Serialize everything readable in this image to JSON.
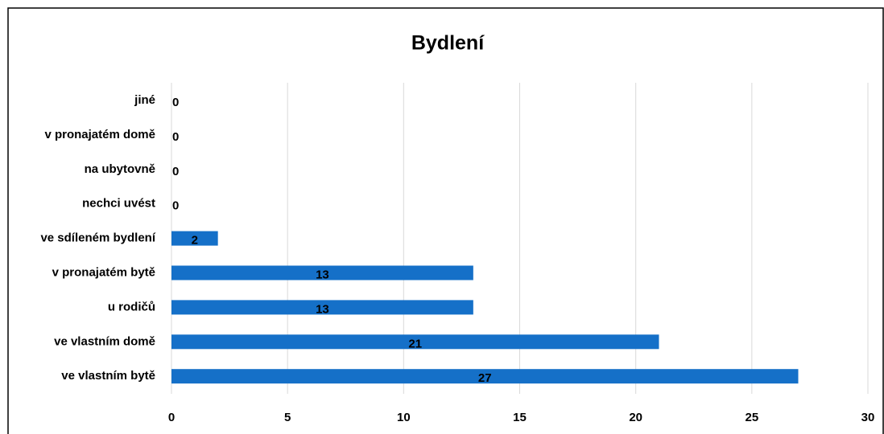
{
  "chart_data": {
    "type": "barh",
    "title": "Bydlení",
    "categories": [
      "jiné",
      "v pronajatém domě",
      "na ubytovně",
      "nechci uvést",
      "ve sdíleném bydlení",
      "v pronajatém bytě",
      "u rodičů",
      "ve vlastním domě",
      "ve vlastním bytě"
    ],
    "values": [
      0,
      0,
      0,
      0,
      2,
      13,
      13,
      21,
      27
    ],
    "color": "#1570c8",
    "xlim": [
      0,
      30
    ],
    "xticks": [
      0,
      5,
      10,
      15,
      20,
      25,
      30
    ],
    "grid": true
  }
}
